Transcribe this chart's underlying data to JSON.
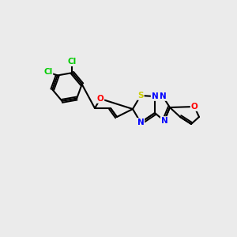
{
  "background_color": "#ebebeb",
  "bond_color": "#000000",
  "atom_colors": {
    "N": "#0000ff",
    "O": "#ff0000",
    "S": "#cccc00",
    "Cl": "#00cc00",
    "C": "#000000"
  },
  "figsize": [
    3.0,
    3.0
  ],
  "dpi": 100
}
